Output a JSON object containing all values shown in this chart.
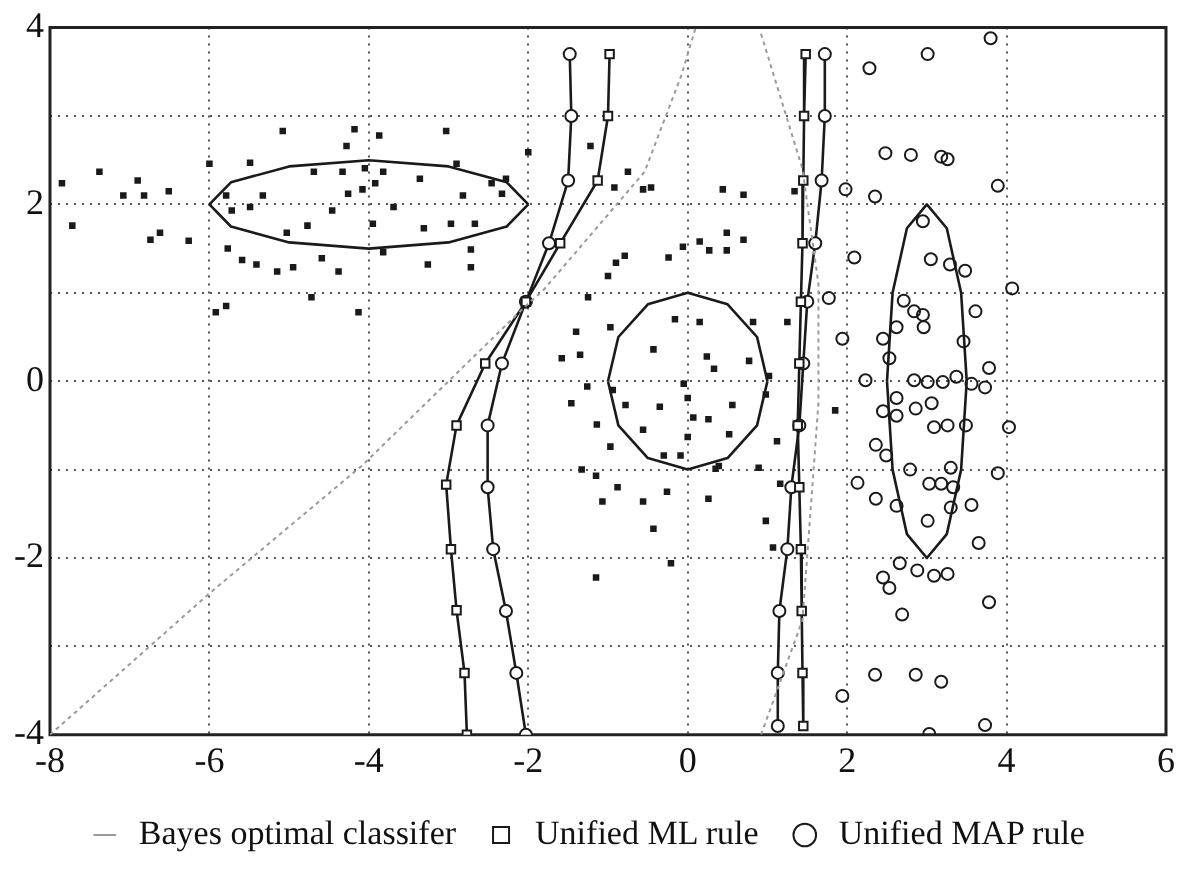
{
  "chart_data": {
    "type": "scatter",
    "xlim": [
      -8,
      6
    ],
    "ylim": [
      -4,
      4
    ],
    "xticks": [
      -8,
      -6,
      -4,
      -2,
      0,
      2,
      4,
      6
    ],
    "yticks": [
      -4,
      {
        "value": -3,
        "label": null
      },
      -2,
      {
        "value": -1,
        "label": null
      },
      0,
      {
        "value": 1,
        "label": null
      },
      2,
      {
        "value": 3,
        "label": null
      },
      4
    ],
    "grid": true,
    "legend": "bottom",
    "series": [
      {
        "name": "Bayes optimal classifer",
        "type": "line",
        "color": "#9a9a9a",
        "marker": "none",
        "line_style": "dotted",
        "x": [
          -8,
          -6,
          -4.08,
          -2,
          -1.82,
          -0.54,
          -0.08,
          0.1,
          null,
          0.92,
          1.44,
          1.64,
          1.64,
          1.44,
          0.92
        ],
        "values": [
          -4,
          -2.4,
          -0.95,
          0.88,
          1.02,
          2.37,
          3.46,
          4,
          null,
          3.93,
          2.4,
          1.1,
          -0.25,
          -2.7,
          -4
        ]
      },
      {
        "name": "Unified ML rule",
        "type": "line",
        "color": "#1a1a1a",
        "marker": "square",
        "line_style": "solid",
        "x": [
          -0.98,
          -1.0,
          -1.13,
          -1.6,
          -2.03,
          -2.54,
          -2.9,
          -3.03,
          -2.97,
          -2.9,
          -2.8,
          -2.77,
          null,
          1.48,
          1.46,
          1.45,
          1.44,
          1.42,
          1.4,
          1.38,
          1.4,
          1.42,
          1.43,
          1.44,
          1.45
        ],
        "values": [
          3.7,
          3.0,
          2.27,
          1.56,
          0.9,
          0.2,
          -0.5,
          -1.17,
          -1.9,
          -2.59,
          -3.3,
          -4,
          null,
          3.7,
          3.0,
          2.27,
          1.56,
          0.9,
          0.2,
          -0.5,
          -1.2,
          -1.9,
          -2.6,
          -3.3,
          -3.9
        ]
      },
      {
        "name": "Unified MAP rule",
        "type": "line",
        "color": "#1a1a1a",
        "marker": "circle",
        "line_style": "solid",
        "x": [
          -1.48,
          -1.46,
          -1.5,
          -1.74,
          -2.03,
          -2.33,
          -2.51,
          -2.51,
          -2.44,
          -2.28,
          -2.15,
          -2.03,
          null,
          1.72,
          1.72,
          1.68,
          1.6,
          1.5,
          1.45,
          1.4,
          1.3,
          1.25,
          1.15,
          1.13,
          1.13
        ],
        "values": [
          3.7,
          3.0,
          2.27,
          1.56,
          0.9,
          0.2,
          -0.5,
          -1.2,
          -1.9,
          -2.6,
          -3.3,
          -4,
          null,
          3.7,
          3.0,
          2.27,
          1.56,
          0.9,
          0.2,
          -0.5,
          -1.2,
          -1.9,
          -2.6,
          -3.3,
          -3.9
        ]
      },
      {
        "type": "line",
        "color": "#1a1a1a",
        "marker": "none",
        "line_style": "solid",
        "x": [
          -6,
          -5.73,
          -5,
          -4,
          -3,
          -2.27,
          -2,
          null,
          -6,
          -5.73,
          -5,
          -4,
          -3,
          -2.27,
          -2
        ],
        "values": [
          2,
          2.25,
          2.43,
          2.5,
          2.43,
          2.25,
          2,
          null,
          2,
          1.75,
          1.57,
          1.5,
          1.57,
          1.75,
          2
        ]
      },
      {
        "type": "line",
        "color": "#1a1a1a",
        "marker": "none",
        "line_style": "solid",
        "x": [
          -1,
          -0.87,
          -0.5,
          0,
          0.5,
          0.87,
          1,
          null,
          -1,
          -0.87,
          -0.5,
          0,
          0.5,
          0.87,
          1
        ],
        "values": [
          0,
          0.5,
          0.87,
          1,
          0.87,
          0.5,
          0,
          null,
          0,
          -0.5,
          -0.87,
          -1,
          -0.87,
          -0.5,
          0
        ]
      },
      {
        "type": "line",
        "color": "#1a1a1a",
        "marker": "none",
        "line_style": "solid",
        "x": [
          2.5,
          2.57,
          2.75,
          3,
          3.25,
          3.43,
          3.5,
          null,
          2.5,
          2.57,
          2.75,
          3,
          3.25,
          3.43,
          3.5
        ],
        "values": [
          0,
          1,
          1.73,
          2,
          1.73,
          1,
          0,
          null,
          0,
          -1,
          -1.73,
          -2,
          -1.73,
          -1,
          0
        ]
      },
      {
        "color": "#1a1a1a",
        "marker": "square",
        "x": [
          -7.85,
          -7.72,
          -7.38,
          -7.08,
          -6.9,
          -6.82,
          -6.51,
          -6.74,
          -6.62,
          -6.26,
          -6.0,
          -5.79,
          -5.72,
          -5.77,
          -5.59,
          -5.41,
          -5.15,
          -4.95,
          -5.49,
          -5.33,
          -5.49,
          -5.08,
          -5.03,
          -4.77,
          -4.69,
          -4.59,
          -4.38,
          -4.72,
          -4.46,
          -4.33,
          -4.28,
          -4.18,
          -4.05,
          -4.13,
          -4.26,
          -4.08,
          -3.95,
          -3.92,
          -3.87,
          -3.82,
          -3.82,
          -3.69,
          -3.31,
          -3.36,
          -3.26,
          -2.97,
          -2.9,
          -2.82,
          -2.72,
          -2.67,
          -2.46,
          -2.33,
          -2.28,
          -2.72,
          -5.79,
          -5.92,
          -2.0,
          -3.03
        ],
        "values": [
          2.24,
          1.76,
          2.37,
          2.1,
          2.27,
          2.1,
          2.15,
          1.6,
          1.68,
          1.59,
          2.46,
          2.1,
          1.93,
          1.5,
          1.37,
          1.32,
          1.24,
          1.29,
          2.47,
          2.1,
          1.97,
          2.83,
          1.68,
          1.76,
          2.37,
          1.39,
          1.24,
          0.95,
          1.93,
          2.37,
          2.66,
          2.85,
          2.41,
          0.78,
          2.12,
          2.17,
          1.78,
          2.24,
          2.78,
          2.37,
          1.46,
          1.97,
          1.73,
          2.29,
          1.32,
          1.78,
          2.46,
          2.1,
          1.29,
          1.78,
          2.24,
          2.12,
          2.29,
          1.49,
          0.85,
          0.78,
          2.59,
          2.83
        ]
      },
      {
        "color": "#1a1a1a",
        "marker": "square",
        "x": [
          -1.22,
          -0.92,
          -0.56,
          -0.46,
          0.44,
          0.7,
          -0.75,
          1.34,
          -0.9,
          -0.79,
          -1.0,
          -0.24,
          -0.06,
          0.15,
          0.27,
          0.49,
          0.49,
          0.7,
          -1.25,
          -1.4,
          -1.58,
          -1.35,
          -1.26,
          -1.46,
          -1.14,
          -0.97,
          -1.33,
          -1.15,
          -0.88,
          -1.07,
          -0.56,
          -0.26,
          -0.43,
          -0.21,
          -1.15,
          0.26,
          0.39,
          0.89,
          0.98,
          1.07,
          1.16,
          1.12,
          0.98,
          1.02,
          0.77,
          0.82,
          1.25,
          1.85,
          -0.97,
          -0.43,
          -0.16,
          0.15,
          0.24,
          0.33,
          -0.05,
          0.0,
          -0.35,
          -0.78,
          -0.56,
          0.0,
          0.07,
          0.26,
          0.52,
          0.56,
          -0.3,
          -0.09,
          0.35,
          -0.94
        ],
        "values": [
          2.66,
          2.19,
          2.17,
          2.19,
          2.17,
          2.11,
          2.37,
          2.15,
          1.34,
          1.42,
          1.19,
          1.4,
          1.52,
          1.58,
          1.48,
          1.48,
          1.68,
          1.6,
          0.95,
          0.56,
          0.26,
          0.3,
          -0.06,
          -0.25,
          -0.49,
          -0.74,
          -1.0,
          -1.07,
          -1.2,
          -1.36,
          -1.36,
          -1.25,
          -1.67,
          -2.06,
          -2.22,
          -1.33,
          -0.96,
          -0.98,
          -1.58,
          -1.88,
          -1.16,
          -0.68,
          -0.15,
          0.06,
          0.23,
          0.67,
          0.67,
          -0.33,
          0.61,
          0.36,
          0.7,
          0.67,
          0.28,
          0.14,
          -0.03,
          -0.19,
          -0.29,
          -0.27,
          -0.55,
          -0.63,
          -0.41,
          -0.43,
          -0.6,
          -0.27,
          -0.84,
          -0.84,
          -0.99,
          -0.1
        ]
      },
      {
        "color": "#1a1a1a",
        "marker": "circle",
        "x": [
          2.28,
          3.01,
          3.8,
          2.48,
          2.8,
          3.18,
          3.26,
          1.98,
          2.35,
          3.89,
          2.09,
          2.95,
          3.05,
          3.29,
          3.48,
          4.07,
          1.77,
          2.71,
          2.84,
          2.95,
          3.61,
          2.62,
          2.96,
          2.45,
          3.46,
          2.53,
          3.78,
          2.23,
          2.84,
          3.01,
          3.2,
          3.37,
          3.56,
          3.73,
          2.62,
          2.45,
          2.62,
          2.86,
          3.06,
          3.09,
          3.26,
          3.49,
          4.03,
          2.36,
          2.49,
          2.79,
          3.3,
          3.89,
          2.13,
          3.03,
          3.18,
          3.33,
          2.36,
          2.62,
          3.3,
          3.56,
          3.01,
          3.65,
          2.45,
          2.66,
          2.88,
          3.09,
          3.26,
          2.53,
          2.69,
          3.78,
          2.35,
          2.86,
          3.18,
          3.73,
          3.03,
          1.94,
          1.94
        ],
        "values": [
          3.54,
          3.7,
          3.88,
          2.58,
          2.56,
          2.54,
          2.51,
          2.17,
          2.09,
          2.21,
          1.4,
          1.81,
          1.38,
          1.32,
          1.25,
          1.05,
          0.94,
          0.91,
          0.79,
          0.75,
          0.79,
          0.61,
          0.61,
          0.48,
          0.45,
          0.26,
          0.15,
          0.01,
          0.01,
          -0.01,
          -0.01,
          0.05,
          -0.03,
          -0.07,
          -0.19,
          -0.34,
          -0.39,
          -0.31,
          -0.25,
          -0.52,
          -0.5,
          -0.5,
          -0.52,
          -0.72,
          -0.84,
          -1.0,
          -0.98,
          -1.04,
          -1.15,
          -1.16,
          -1.16,
          -1.2,
          -1.33,
          -1.41,
          -1.43,
          -1.4,
          -1.58,
          -1.83,
          -2.22,
          -2.06,
          -2.14,
          -2.2,
          -2.18,
          -2.34,
          -2.64,
          -2.5,
          -3.32,
          -3.32,
          -3.4,
          -3.89,
          -3.99,
          -3.56,
          0.48
        ]
      }
    ]
  }
}
